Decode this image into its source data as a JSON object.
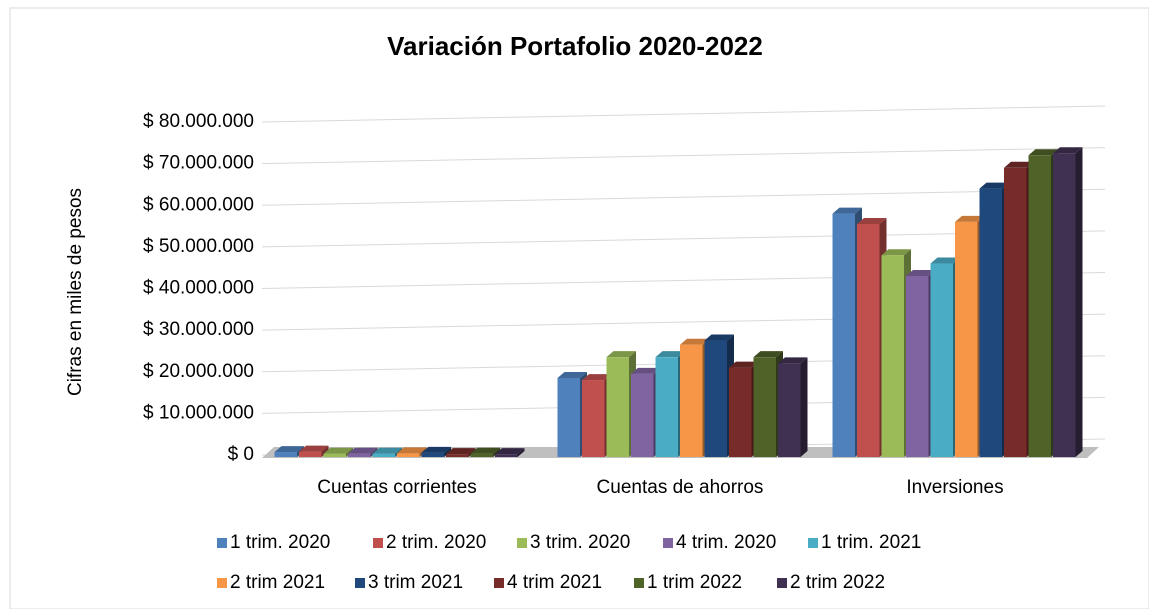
{
  "chart_data": {
    "type": "bar3d",
    "title": "Variación Portafolio 2020-2022",
    "y_label": "Cifras en miles de pesos",
    "categories": [
      "Cuentas corrientes",
      "Cuentas de ahorros",
      "Inversiones"
    ],
    "series": [
      {
        "name": "1 trim. 2020",
        "color": "#4f81bd",
        "values": [
          700000,
          18500000,
          58000000
        ]
      },
      {
        "name": "2 trim. 2020",
        "color": "#c0504d",
        "values": [
          800000,
          18000000,
          55500000
        ]
      },
      {
        "name": "3 trim. 2020",
        "color": "#9bbb59",
        "values": [
          300000,
          23500000,
          48000000
        ]
      },
      {
        "name": "4 trim. 2020",
        "color": "#8064a2",
        "values": [
          300000,
          19500000,
          43000000
        ]
      },
      {
        "name": "1 trim. 2021",
        "color": "#4bacc6",
        "values": [
          300000,
          23500000,
          46000000
        ]
      },
      {
        "name": "2 trim 2021",
        "color": "#f79646",
        "values": [
          400000,
          26500000,
          56000000
        ]
      },
      {
        "name": "3 trim 2021",
        "color": "#1f497d",
        "values": [
          500000,
          27500000,
          64000000
        ]
      },
      {
        "name": "4 trim 2021",
        "color": "#772c2a",
        "values": [
          200000,
          21000000,
          69000000
        ]
      },
      {
        "name": "1 trim 2022",
        "color": "#4f6228",
        "values": [
          300000,
          23500000,
          72000000
        ]
      },
      {
        "name": "2 trim 2022",
        "color": "#403152",
        "values": [
          200000,
          22000000,
          72500000
        ]
      }
    ],
    "ylim": [
      0,
      80000000
    ],
    "yticks": [
      {
        "value": 0,
        "label": "$ 0"
      },
      {
        "value": 10000000,
        "label": "$ 10.000.000"
      },
      {
        "value": 20000000,
        "label": "$ 20.000.000"
      },
      {
        "value": 30000000,
        "label": "$ 30.000.000"
      },
      {
        "value": 40000000,
        "label": "$ 40.000.000"
      },
      {
        "value": 50000000,
        "label": "$ 50.000.000"
      },
      {
        "value": 60000000,
        "label": "$ 60.000.000"
      },
      {
        "value": 70000000,
        "label": "$ 70.000.000"
      },
      {
        "value": 80000000,
        "label": "$ 80.000.000"
      }
    ],
    "grid": true
  }
}
